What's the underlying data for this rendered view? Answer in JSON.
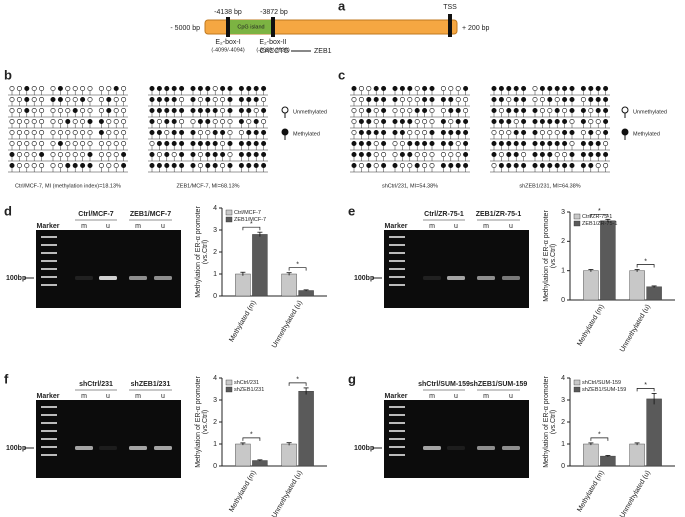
{
  "panel_labels": [
    "a",
    "b",
    "c",
    "d",
    "e",
    "f",
    "g"
  ],
  "promoter": {
    "left_end": "- 5000 bp",
    "right_end": "+ 200 bp",
    "mark1": "-4138 bp",
    "mark2": "-3872 bp",
    "tss": "TSS",
    "cpg": "CpG island",
    "ebox1": "E₂-box-I",
    "ebox1_pos": "(-4099/-4094)",
    "ebox2": "E₂-box-II",
    "ebox2_pos": "(-3939/-3938)",
    "motif": "CACCTG",
    "factor": "ZEB1"
  },
  "methylation": {
    "captions": [
      "Ctrl/MCF-7, MI (methylation index)=18.13%",
      "ZEB1/MCF-7, MI=68.13%",
      "shCtrl/231, MI=54.38%",
      "shZEB1/231, MI=64.38%"
    ],
    "legend": [
      "Unmethylated",
      "Methylated"
    ]
  },
  "gels": [
    {
      "marker": "Marker",
      "groups": [
        "Ctrl/MCF-7",
        "ZEB1/MCF-7"
      ],
      "lanes": [
        "m",
        "u",
        "m",
        "u"
      ],
      "size": "100bp"
    },
    {
      "marker": "Marker",
      "groups": [
        "Ctrl/ZR-75-1",
        "ZEB1/ZR-75-1"
      ],
      "lanes": [
        "m",
        "u",
        "m",
        "u"
      ],
      "size": "100bp"
    },
    {
      "marker": "Marker",
      "groups": [
        "shCtrl/231",
        "shZEB1/231"
      ],
      "lanes": [
        "m",
        "u",
        "m",
        "u"
      ],
      "size": "100bp"
    },
    {
      "marker": "Marker",
      "groups": [
        "shCtrl/SUM-159",
        "shZEB1/SUM-159"
      ],
      "lanes": [
        "m",
        "u",
        "m",
        "u"
      ],
      "size": "100bp"
    }
  ],
  "chart_data": [
    {
      "type": "bar",
      "ylabel": [
        "Methylation of ER-α promoter",
        "(vs.Ctrl)"
      ],
      "categories": [
        "Methylated (m)",
        "Unmethylated (u)"
      ],
      "series": [
        {
          "name": "Ctrl/MCF-7",
          "color": "#c8c8c8",
          "values": [
            1.0,
            1.0
          ],
          "errors": [
            0.08,
            0.06
          ]
        },
        {
          "name": "ZEB1/MCF-7",
          "color": "#5a5a5a",
          "values": [
            2.8,
            0.25
          ],
          "errors": [
            0.1,
            0.03
          ]
        }
      ],
      "ylim": [
        0,
        4
      ],
      "yticks": [
        0,
        1,
        2,
        3,
        4
      ],
      "annotations": [
        "*",
        "*"
      ]
    },
    {
      "type": "bar",
      "ylabel": [
        "Methylation of ER-α promoter",
        "(vs.Ctrl)"
      ],
      "categories": [
        "Methylated (m)",
        "Unmethylated (u)"
      ],
      "series": [
        {
          "name": "Ctrl/ZR-75-1",
          "color": "#c8c8c8",
          "values": [
            1.0,
            1.0
          ],
          "errors": [
            0.04,
            0.04
          ]
        },
        {
          "name": "ZEB1/ZR-75-1",
          "color": "#5a5a5a",
          "values": [
            2.7,
            0.45
          ],
          "errors": [
            0.05,
            0.03
          ]
        }
      ],
      "ylim": [
        0,
        3
      ],
      "yticks": [
        0,
        1,
        2,
        3
      ],
      "annotations": [
        "*",
        "*"
      ]
    },
    {
      "type": "bar",
      "ylabel": [
        "Methylation of ER-α promoter",
        "(vs.Ctrl)"
      ],
      "categories": [
        "Methylated (m)",
        "Unmethylated (u)"
      ],
      "series": [
        {
          "name": "shCtrl/231",
          "color": "#c8c8c8",
          "values": [
            1.0,
            1.0
          ],
          "errors": [
            0.05,
            0.06
          ]
        },
        {
          "name": "shZEB1/231",
          "color": "#5a5a5a",
          "values": [
            0.25,
            3.4
          ],
          "errors": [
            0.03,
            0.15
          ]
        }
      ],
      "ylim": [
        0,
        4
      ],
      "yticks": [
        0,
        1,
        2,
        3,
        4
      ],
      "annotations": [
        "*",
        "*"
      ]
    },
    {
      "type": "bar",
      "ylabel": [
        "Methylation of ER-α promoter",
        "(vs.Ctrl)"
      ],
      "categories": [
        "Methylated (m)",
        "Unmethylated (u)"
      ],
      "series": [
        {
          "name": "shCtrl/SUM-159",
          "color": "#c8c8c8",
          "values": [
            1.0,
            1.0
          ],
          "errors": [
            0.05,
            0.05
          ]
        },
        {
          "name": "shZEB1/SUM-159",
          "color": "#5a5a5a",
          "values": [
            0.45,
            3.05
          ],
          "errors": [
            0.03,
            0.25
          ]
        }
      ],
      "ylim": [
        0,
        4
      ],
      "yticks": [
        0,
        1,
        2,
        3,
        4
      ],
      "annotations": [
        "*",
        "*"
      ]
    }
  ]
}
